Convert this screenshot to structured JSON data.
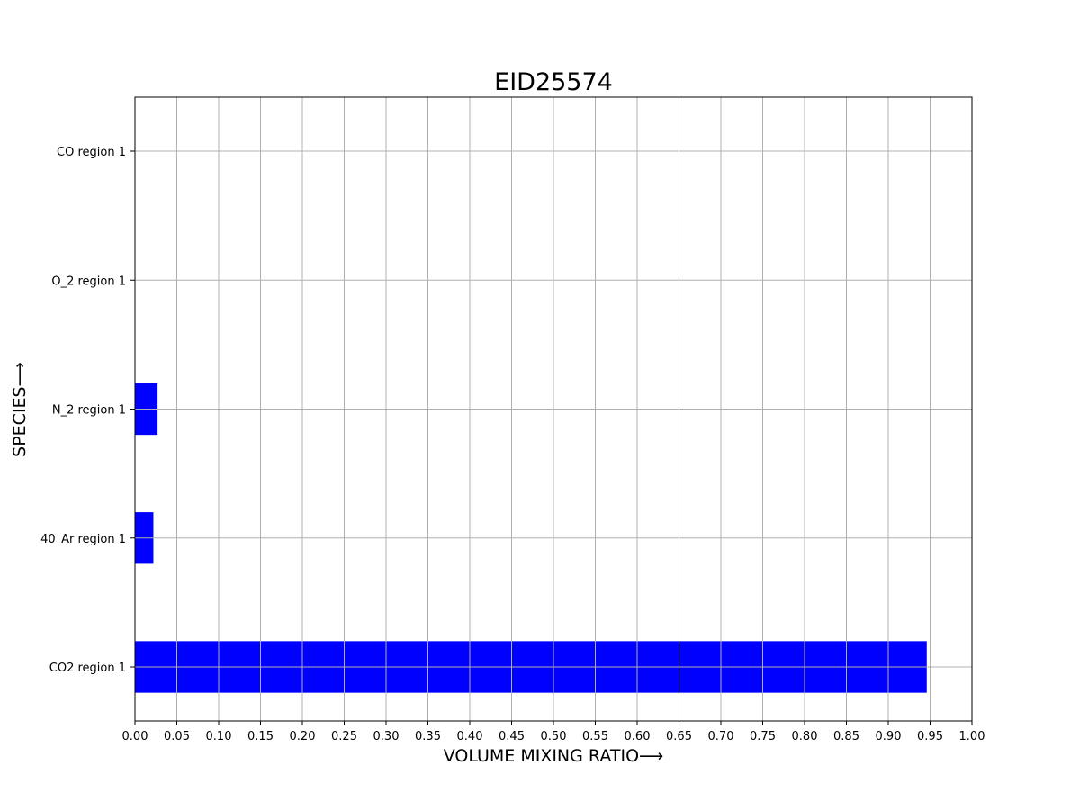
{
  "chart_data": {
    "type": "bar",
    "orientation": "horizontal",
    "title": "EID25574",
    "xlabel": "VOLUME MIXING RATIO⟶",
    "ylabel": "SPECIES⟶",
    "categories": [
      "CO2 region 1",
      "40_Ar region 1",
      "N_2 region 1",
      "O_2 region 1",
      "CO region 1"
    ],
    "values": [
      0.946,
      0.022,
      0.027,
      0.0,
      0.0
    ],
    "xlim": [
      0,
      1.0
    ],
    "xticks": [
      "0.00",
      "0.05",
      "0.10",
      "0.15",
      "0.20",
      "0.25",
      "0.30",
      "0.35",
      "0.40",
      "0.45",
      "0.50",
      "0.55",
      "0.60",
      "0.65",
      "0.70",
      "0.75",
      "0.80",
      "0.85",
      "0.90",
      "0.95",
      "1.00"
    ],
    "grid": true,
    "bar_color": "#0000ff",
    "grid_color": "#b0b0b0"
  }
}
